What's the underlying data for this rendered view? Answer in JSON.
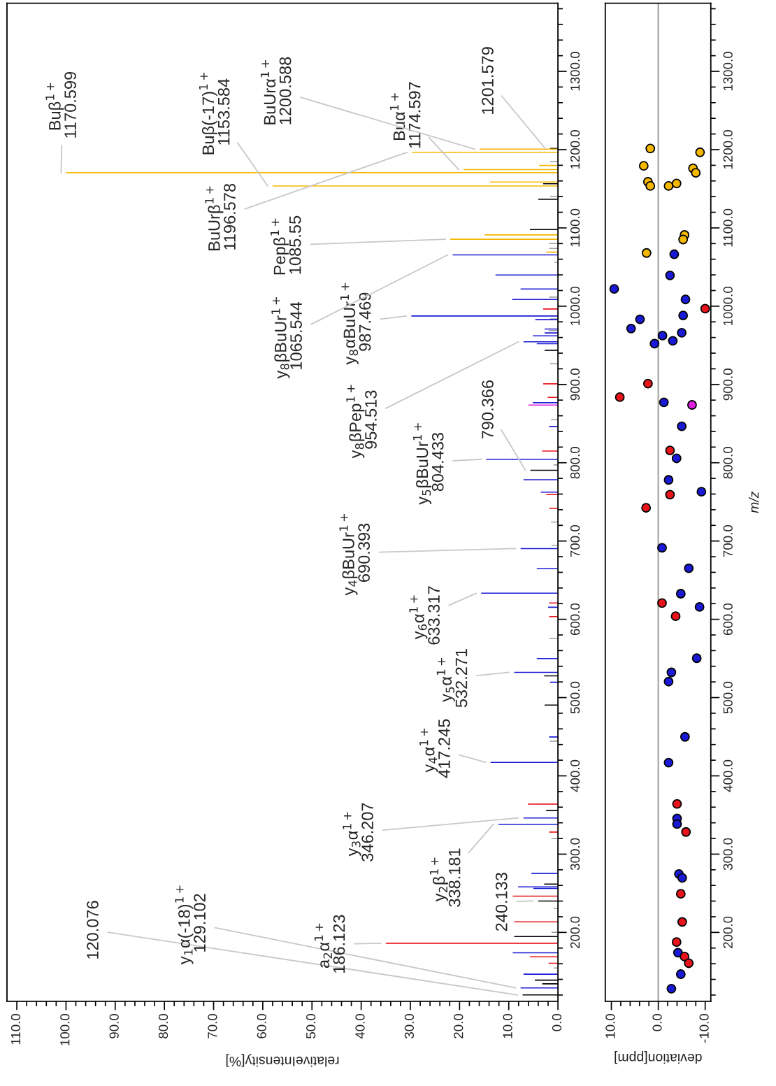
{
  "chart_data": [
    {
      "type": "bar",
      "orientation": "horizontal",
      "xlabel": "relativeIntensity[%]",
      "xlim": [
        112,
        0
      ],
      "ylim": [
        112,
        1387
      ],
      "xticks": [
        {
          "value": 0,
          "label": "0.0"
        },
        {
          "value": 2,
          "label": null
        },
        {
          "value": 4,
          "label": null
        },
        {
          "value": 6,
          "label": null
        },
        {
          "value": 8,
          "label": null
        },
        {
          "value": 10,
          "label": "10.0"
        },
        {
          "value": 12,
          "label": null
        },
        {
          "value": 14,
          "label": null
        },
        {
          "value": 16,
          "label": null
        },
        {
          "value": 18,
          "label": null
        },
        {
          "value": 20,
          "label": "20.0"
        },
        {
          "value": 22,
          "label": null
        },
        {
          "value": 24,
          "label": null
        },
        {
          "value": 26,
          "label": null
        },
        {
          "value": 28,
          "label": null
        },
        {
          "value": 30,
          "label": "30.0"
        },
        {
          "value": 32,
          "label": null
        },
        {
          "value": 34,
          "label": null
        },
        {
          "value": 36,
          "label": null
        },
        {
          "value": 38,
          "label": null
        },
        {
          "value": 40,
          "label": "40.0"
        },
        {
          "value": 42,
          "label": null
        },
        {
          "value": 44,
          "label": null
        },
        {
          "value": 46,
          "label": null
        },
        {
          "value": 48,
          "label": null
        },
        {
          "value": 50,
          "label": "50.0"
        },
        {
          "value": 52,
          "label": null
        },
        {
          "value": 54,
          "label": null
        },
        {
          "value": 56,
          "label": null
        },
        {
          "value": 58,
          "label": null
        },
        {
          "value": 60,
          "label": "60.0"
        },
        {
          "value": 62,
          "label": null
        },
        {
          "value": 64,
          "label": null
        },
        {
          "value": 66,
          "label": null
        },
        {
          "value": 68,
          "label": null
        },
        {
          "value": 70,
          "label": "70.0"
        },
        {
          "value": 72,
          "label": null
        },
        {
          "value": 74,
          "label": null
        },
        {
          "value": 76,
          "label": null
        },
        {
          "value": 78,
          "label": null
        },
        {
          "value": 80,
          "label": "80.0"
        },
        {
          "value": 82,
          "label": null
        },
        {
          "value": 84,
          "label": null
        },
        {
          "value": 86,
          "label": null
        },
        {
          "value": 88,
          "label": null
        },
        {
          "value": 90,
          "label": "90.0"
        },
        {
          "value": 92,
          "label": null
        },
        {
          "value": 94,
          "label": null
        },
        {
          "value": 96,
          "label": null
        },
        {
          "value": 98,
          "label": null
        },
        {
          "value": 100,
          "label": "100.0"
        },
        {
          "value": 102,
          "label": null
        },
        {
          "value": 104,
          "label": null
        },
        {
          "value": 106,
          "label": null
        },
        {
          "value": 108,
          "label": null
        },
        {
          "value": 110,
          "label": "110.0"
        }
      ],
      "yticks": [
        {
          "value": 120,
          "label": null
        },
        {
          "value": 140,
          "label": null
        },
        {
          "value": 160,
          "label": null
        },
        {
          "value": 180,
          "label": null
        },
        {
          "value": 200,
          "label": "200.0"
        },
        {
          "value": 220,
          "label": null
        },
        {
          "value": 240,
          "label": null
        },
        {
          "value": 260,
          "label": null
        },
        {
          "value": 280,
          "label": null
        },
        {
          "value": 300,
          "label": "300.0"
        },
        {
          "value": 320,
          "label": null
        },
        {
          "value": 340,
          "label": null
        },
        {
          "value": 360,
          "label": null
        },
        {
          "value": 380,
          "label": null
        },
        {
          "value": 400,
          "label": "400.0"
        },
        {
          "value": 420,
          "label": null
        },
        {
          "value": 440,
          "label": null
        },
        {
          "value": 460,
          "label": null
        },
        {
          "value": 480,
          "label": null
        },
        {
          "value": 500,
          "label": "500.0"
        },
        {
          "value": 520,
          "label": null
        },
        {
          "value": 540,
          "label": null
        },
        {
          "value": 560,
          "label": null
        },
        {
          "value": 580,
          "label": null
        },
        {
          "value": 600,
          "label": "600.0"
        },
        {
          "value": 620,
          "label": null
        },
        {
          "value": 640,
          "label": null
        },
        {
          "value": 660,
          "label": null
        },
        {
          "value": 680,
          "label": null
        },
        {
          "value": 700,
          "label": "700.0"
        },
        {
          "value": 720,
          "label": null
        },
        {
          "value": 740,
          "label": null
        },
        {
          "value": 760,
          "label": null
        },
        {
          "value": 780,
          "label": null
        },
        {
          "value": 800,
          "label": "800.0"
        },
        {
          "value": 820,
          "label": null
        },
        {
          "value": 840,
          "label": null
        },
        {
          "value": 860,
          "label": null
        },
        {
          "value": 880,
          "label": null
        },
        {
          "value": 900,
          "label": "900.0"
        },
        {
          "value": 920,
          "label": null
        },
        {
          "value": 940,
          "label": null
        },
        {
          "value": 960,
          "label": null
        },
        {
          "value": 980,
          "label": null
        },
        {
          "value": 1000,
          "label": "1000.0"
        },
        {
          "value": 1020,
          "label": null
        },
        {
          "value": 1040,
          "label": null
        },
        {
          "value": 1060,
          "label": null
        },
        {
          "value": 1080,
          "label": null
        },
        {
          "value": 1100,
          "label": "1100.0"
        },
        {
          "value": 1120,
          "label": null
        },
        {
          "value": 1140,
          "label": null
        },
        {
          "value": 1160,
          "label": null
        },
        {
          "value": 1180,
          "label": null
        },
        {
          "value": 1200,
          "label": "1200.0"
        },
        {
          "value": 1220,
          "label": null
        },
        {
          "value": 1240,
          "label": null
        },
        {
          "value": 1260,
          "label": null
        },
        {
          "value": 1280,
          "label": null
        },
        {
          "value": 1300,
          "label": "1300.0"
        },
        {
          "value": 1320,
          "label": null
        },
        {
          "value": 1340,
          "label": null
        },
        {
          "value": 1360,
          "label": null
        },
        {
          "value": 1380,
          "label": null
        }
      ],
      "series": [
        {
          "color": "#a0a0a0",
          "x": [
            1184.8,
            1140.2,
            1080.0,
            1073.8,
            1056.2,
            1011.6,
            983.8,
            968.9,
            926.7,
            855.2,
            797.2,
            724.2,
            694.4,
            575.6,
            444.3,
            319.8,
            230.5,
            200.1,
            154.6
          ],
          "values": [
            1.6,
            1.6,
            1.8,
            1.8,
            0.7,
            1.8,
            1.6,
            1.9,
            1.6,
            1.4,
            0.9,
            1.4,
            1.3,
            1.8,
            1.6,
            1.3,
            0.9,
            1.3,
            0.9
          ]
        },
        {
          "color": "#000000",
          "x": [
            1201.579,
            1156.5,
            1136.6,
            1098.0,
            943.7,
            790.366,
            527.8,
            490.5,
            355.9,
            261.8,
            240.133,
            194.8,
            139.0,
            134.3,
            120.076
          ],
          "values": [
            1.6,
            3.0,
            4.0,
            5.7,
            2.7,
            5.6,
            2.8,
            2.7,
            2.4,
            2.8,
            4.0,
            8.9,
            4.7,
            3.2,
            7.2
          ]
        },
        {
          "color": "#f5b800",
          "x": [
            1200.588,
            1196.578,
            1179.8,
            1174.597,
            1170.599,
            1158.7,
            1153.584,
            1091.1,
            1085.55,
            1069.0
          ],
          "values": [
            15.9,
            29.7,
            3.8,
            19.2,
            100,
            13.8,
            58,
            14.9,
            21.9,
            2.4
          ]
        },
        {
          "color": "#1a1ad6",
          "x": [
            1065.544,
            1039.9,
            1022.0,
            1008.6,
            987.469,
            982.8,
            970.8,
            965.8,
            962.2,
            954.513,
            952.1,
            876.7,
            846.3,
            804.433,
            778.3,
            762.5,
            690.393,
            664.6,
            633.317,
            615.4,
            549.9,
            532.271,
            519.6,
            449.7,
            417.245,
            346.207,
            338.181,
            275.5,
            258.2,
            256.1,
            173.9,
            146.6,
            129.102
          ],
          "values": [
            21.4,
            12.7,
            7.6,
            9.3,
            29.8,
            4.6,
            2.7,
            2.7,
            5.1,
            7.0,
            4.3,
            5.1,
            1.8,
            14.6,
            7.0,
            3.5,
            7.6,
            4.3,
            15.6,
            2.0,
            4.3,
            8.9,
            1.6,
            1.8,
            13.7,
            7.0,
            12.1,
            5.4,
            8.1,
            5.0,
            9.2,
            7.0,
            7.6
          ]
        },
        {
          "color": "#e8141c",
          "x": [
            996.4,
            900.8,
            883.5,
            815.0,
            759.3,
            741.7,
            620.8,
            603.5,
            363.9,
            328.2,
            246.3,
            213.5,
            186.123,
            168.9,
            160.5
          ],
          "values": [
            3.0,
            3.0,
            2.1,
            3.2,
            2.4,
            1.8,
            1.8,
            1.8,
            6.1,
            1.8,
            9.2,
            8.9,
            35.0,
            5.7,
            1.9
          ]
        },
        {
          "color": "#e020e0",
          "x": [
            873.7
          ],
          "values": [
            6.0
          ]
        }
      ],
      "annotations": [
        {
          "text": "120.076",
          "x": 7.2,
          "y": 120.076
        },
        {
          "text": "y$_{1}$α(-18)$^{1+}$\n129.102",
          "x": 7.6,
          "y": 129.102
        },
        {
          "text": "a$_{2}$α$^{1+}$\n186.123",
          "x": 35.0,
          "y": 186.123
        },
        {
          "text": "240.133",
          "x": 4.0,
          "y": 240.133
        },
        {
          "text": "y$_{2}$β$^{1+}$\n338.181",
          "x": 12.1,
          "y": 338.181
        },
        {
          "text": "y$_{3}$α$^{1+}$\n346.207",
          "x": 7.0,
          "y": 346.207
        },
        {
          "text": "y$_{4}$α$^{1+}$\n417.245",
          "x": 13.7,
          "y": 417.245
        },
        {
          "text": "y$_{5}$α$^{1+}$\n532.271",
          "x": 8.9,
          "y": 532.271
        },
        {
          "text": "y$_{6}$α$^{1+}$\n633.317",
          "x": 15.6,
          "y": 633.317
        },
        {
          "text": "y$_{4}$βBuUr$^{1+}$\n690.393",
          "x": 7.6,
          "y": 690.393
        },
        {
          "text": "790.366",
          "x": 5.6,
          "y": 790.366
        },
        {
          "text": "y$_{5}$βBuUr$^{1+}$\n804.433",
          "x": 14.6,
          "y": 804.433
        },
        {
          "text": "y$_{8}$βPep$^{1+}$\n954.513",
          "x": 7.0,
          "y": 954.513
        },
        {
          "text": "y$_{8}$αBuUr$^{1+}$\n987.469",
          "x": 29.8,
          "y": 987.469
        },
        {
          "text": "y$_{8}$βBuUr$^{1+}$\n1065.544",
          "x": 21.4,
          "y": 1065.544
        },
        {
          "text": "Pepβ$^{1+}$\n1085.55",
          "x": 21.9,
          "y": 1085.55
        },
        {
          "text": "Buβ(-17)$^{1+}$\n1153.584",
          "x": 58,
          "y": 1153.584
        },
        {
          "text": "Buβ$^{1+}$\n1170.599",
          "x": 100,
          "y": 1170.599
        },
        {
          "text": "Buα$^{1+}$\n1174.597",
          "x": 19.2,
          "y": 1174.597
        },
        {
          "text": "BuUrβ$^{1+}$\n1196.578",
          "x": 29.7,
          "y": 1196.578
        },
        {
          "text": "BuUrα$^{1+}$\n1200.588",
          "x": 15.9,
          "y": 1200.588
        },
        {
          "text": "1201.579",
          "x": 1.6,
          "y": 1201.579
        }
      ]
    },
    {
      "type": "scatter",
      "orientation": "horizontal",
      "xlabel": "deviation[ppm]",
      "ylabel": "m/z",
      "xlim": [
        11.3,
        -11.2
      ],
      "ylim": [
        112,
        1387
      ],
      "xticks": [
        {
          "value": 10,
          "label": "10.0"
        },
        {
          "value": 8,
          "label": null
        },
        {
          "value": 6,
          "label": null
        },
        {
          "value": 4,
          "label": null
        },
        {
          "value": 2,
          "label": null
        },
        {
          "value": 0,
          "label": "0.0"
        },
        {
          "value": -2,
          "label": null
        },
        {
          "value": -4,
          "label": null
        },
        {
          "value": -6,
          "label": null
        },
        {
          "value": -8,
          "label": null
        },
        {
          "value": -10,
          "label": "-10.0"
        }
      ],
      "yticks": [
        {
          "value": 120,
          "label": null
        },
        {
          "value": 140,
          "label": null
        },
        {
          "value": 160,
          "label": null
        },
        {
          "value": 180,
          "label": null
        },
        {
          "value": 200,
          "label": "200.0"
        },
        {
          "value": 220,
          "label": null
        },
        {
          "value": 240,
          "label": null
        },
        {
          "value": 260,
          "label": null
        },
        {
          "value": 280,
          "label": null
        },
        {
          "value": 300,
          "label": "300.0"
        },
        {
          "value": 320,
          "label": null
        },
        {
          "value": 340,
          "label": null
        },
        {
          "value": 360,
          "label": null
        },
        {
          "value": 380,
          "label": null
        },
        {
          "value": 400,
          "label": "400.0"
        },
        {
          "value": 420,
          "label": null
        },
        {
          "value": 440,
          "label": null
        },
        {
          "value": 460,
          "label": null
        },
        {
          "value": 480,
          "label": null
        },
        {
          "value": 500,
          "label": "500.0"
        },
        {
          "value": 520,
          "label": null
        },
        {
          "value": 540,
          "label": null
        },
        {
          "value": 560,
          "label": null
        },
        {
          "value": 580,
          "label": null
        },
        {
          "value": 600,
          "label": "600.0"
        },
        {
          "value": 620,
          "label": null
        },
        {
          "value": 640,
          "label": null
        },
        {
          "value": 660,
          "label": null
        },
        {
          "value": 680,
          "label": null
        },
        {
          "value": 700,
          "label": "700.0"
        },
        {
          "value": 720,
          "label": null
        },
        {
          "value": 740,
          "label": null
        },
        {
          "value": 760,
          "label": null
        },
        {
          "value": 780,
          "label": null
        },
        {
          "value": 800,
          "label": "800.0"
        },
        {
          "value": 820,
          "label": null
        },
        {
          "value": 840,
          "label": null
        },
        {
          "value": 860,
          "label": null
        },
        {
          "value": 880,
          "label": null
        },
        {
          "value": 900,
          "label": "900.0"
        },
        {
          "value": 920,
          "label": null
        },
        {
          "value": 940,
          "label": null
        },
        {
          "value": 960,
          "label": null
        },
        {
          "value": 980,
          "label": null
        },
        {
          "value": 1000,
          "label": "1000.0"
        },
        {
          "value": 1020,
          "label": null
        },
        {
          "value": 1040,
          "label": null
        },
        {
          "value": 1060,
          "label": null
        },
        {
          "value": 1080,
          "label": null
        },
        {
          "value": 1100,
          "label": "1100.0"
        },
        {
          "value": 1120,
          "label": null
        },
        {
          "value": 1140,
          "label": null
        },
        {
          "value": 1160,
          "label": null
        },
        {
          "value": 1180,
          "label": null
        },
        {
          "value": 1200,
          "label": "1200.0"
        },
        {
          "value": 1220,
          "label": null
        },
        {
          "value": 1240,
          "label": null
        },
        {
          "value": 1260,
          "label": null
        },
        {
          "value": 1280,
          "label": null
        },
        {
          "value": 1300,
          "label": "1300.0"
        },
        {
          "value": 1320,
          "label": null
        },
        {
          "value": 1340,
          "label": null
        },
        {
          "value": 1360,
          "label": null
        },
        {
          "value": 1380,
          "label": null
        }
      ],
      "ref_lines": [
        {
          "axis": "x",
          "value": 0,
          "color": "#a0a0a0"
        }
      ],
      "series": [
        {
          "color": "#f5b800",
          "x": [
            1201.5,
            1196.6,
            1179.4,
            1176.1,
            1170.4,
            1158.9,
            1153.6,
            1153.6,
            1156.8,
            1091.0,
            1085.2,
            1068.0
          ],
          "values": [
            1.7,
            -8.9,
            3.1,
            -7.4,
            -8.0,
            2.2,
            1.7,
            -2.2,
            -3.9,
            -5.6,
            -5.3,
            2.5
          ]
        },
        {
          "color": "#1a1ad6",
          "x": [
            1066.4,
            1039.3,
            1022.1,
            1008.6,
            988.2,
            983.3,
            971.4,
            966.1,
            962.4,
            955.8,
            952.1,
            877.2,
            846.5,
            805.6,
            778.1,
            763.0,
            691.3,
            665.2,
            632.7,
            615.8,
            550.3,
            532.2,
            520.4,
            449.8,
            416.9,
            345.6,
            338.4,
            274.6,
            269.6,
            174.1,
            146.7,
            128.1
          ],
          "values": [
            -3.4,
            -2.5,
            9.4,
            -5.8,
            -5.3,
            3.9,
            5.8,
            -5.0,
            -0.9,
            -3.1,
            0.8,
            -1.2,
            -5.0,
            -3.9,
            -2.2,
            -9.2,
            -0.8,
            -6.5,
            -4.8,
            -8.8,
            -8.2,
            -2.8,
            -2.2,
            -5.7,
            -2.2,
            -4.0,
            -4.0,
            -4.4,
            -5.1,
            -4.2,
            -4.8,
            -2.8
          ]
        },
        {
          "color": "#e8141c",
          "x": [
            996.8,
            901.0,
            883.8,
            815.8,
            759.3,
            742.4,
            620.8,
            604.0,
            364.1,
            328.3,
            249.3,
            213.4,
            187.7,
            169.1,
            160.6
          ],
          "values": [
            -10.0,
            2.2,
            8.2,
            -2.5,
            -2.5,
            2.6,
            -0.8,
            -3.7,
            -4.0,
            -5.9,
            -4.8,
            -5.1,
            -3.9,
            -5.6,
            -6.5
          ]
        },
        {
          "color": "#e020e0",
          "x": [
            873.9
          ],
          "values": [
            -7.2
          ]
        }
      ]
    }
  ]
}
